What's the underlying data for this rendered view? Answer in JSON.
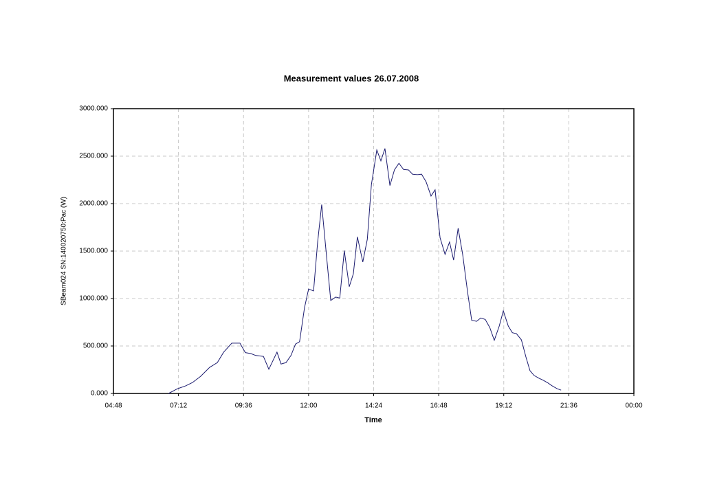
{
  "chart_data": {
    "type": "line",
    "title": "Measurement values 26.07.2008",
    "x_label": "Time",
    "y_label": "SBeam024 SN:140020750:Pac (W)",
    "color": "#1a1a6e",
    "grid": true,
    "x": [
      410,
      430,
      448,
      463,
      481,
      501,
      518,
      532,
      550,
      568,
      580,
      592,
      603,
      620,
      632,
      650,
      659,
      670,
      681,
      691,
      700,
      711,
      720,
      731,
      740,
      749,
      760,
      769,
      780,
      789,
      799,
      810,
      819,
      828,
      840,
      850,
      859,
      871,
      880,
      889,
      900,
      910,
      920,
      930,
      941,
      950,
      961,
      970,
      980,
      991,
      1000,
      1011,
      1022,
      1032,
      1041,
      1051,
      1061,
      1072,
      1081,
      1092,
      1101,
      1111,
      1121,
      1131,
      1142,
      1151,
      1162,
      1171,
      1180,
      1191,
      1201,
      1210,
      1219,
      1230,
      1239,
      1250,
      1259,
      1270,
      1279
    ],
    "values": [
      0,
      50,
      80,
      115,
      180,
      275,
      325,
      435,
      530,
      530,
      430,
      420,
      400,
      390,
      255,
      435,
      310,
      325,
      400,
      520,
      545,
      905,
      1100,
      1080,
      1595,
      1990,
      1430,
      980,
      1015,
      1005,
      1505,
      1125,
      1260,
      1650,
      1385,
      1625,
      2200,
      2565,
      2450,
      2580,
      2190,
      2355,
      2425,
      2360,
      2355,
      2310,
      2305,
      2310,
      2230,
      2080,
      2145,
      1640,
      1465,
      1595,
      1405,
      1740,
      1465,
      1065,
      770,
      760,
      795,
      780,
      695,
      560,
      710,
      870,
      710,
      640,
      630,
      565,
      385,
      240,
      190,
      160,
      140,
      110,
      80,
      50,
      35
    ],
    "xlim": [
      288,
      1440
    ],
    "xticks": [
      {
        "value": 288,
        "label": "04:48"
      },
      {
        "value": 432,
        "label": "07:12"
      },
      {
        "value": 576,
        "label": "09:36"
      },
      {
        "value": 720,
        "label": "12:00"
      },
      {
        "value": 864,
        "label": "14:24"
      },
      {
        "value": 1008,
        "label": "16:48"
      },
      {
        "value": 1152,
        "label": "19:12"
      },
      {
        "value": 1296,
        "label": "21:36"
      },
      {
        "value": 1440,
        "label": "00:00"
      }
    ],
    "ylim": [
      0,
      3000
    ],
    "yticks": [
      {
        "value": 0,
        "label": "0.000"
      },
      {
        "value": 500,
        "label": "500.000"
      },
      {
        "value": 1000,
        "label": "1000.000"
      },
      {
        "value": 1500,
        "label": "1500.000"
      },
      {
        "value": 2000,
        "label": "2000.000"
      },
      {
        "value": 2500,
        "label": "2500.000"
      },
      {
        "value": 3000,
        "label": "3000.000"
      }
    ]
  }
}
